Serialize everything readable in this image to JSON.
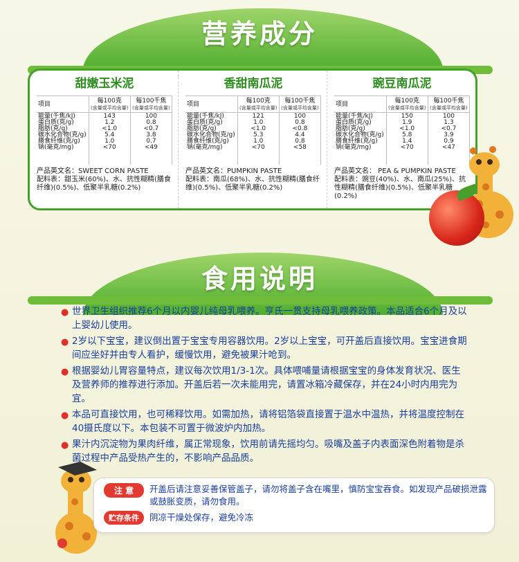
{
  "nutrition": {
    "title": "营养成分",
    "header_item": "项目",
    "header_per100g": "每100克",
    "header_per100g_sub": "(含量或平均含量)",
    "header_per100kj": "每100千焦",
    "header_per100kj_sub": "(含量或平均含量)",
    "row_labels": [
      "能量(千焦/kJ)",
      "蛋白质(克/g)",
      "脂肪(克/g)",
      "碳水化合物(克/g)",
      "膳食纤维(克/g)",
      "钠(毫克/mg)"
    ],
    "products": [
      {
        "name": "甜嫩玉米泥",
        "per100g": [
          "143",
          "1.2",
          "<1.0",
          "5.4",
          "1.0",
          "<70"
        ],
        "per100kj": [
          "100",
          "0.8",
          "<0.7",
          "3.8",
          "0.7",
          "<49"
        ],
        "english_name": "产品英文名：SWEET CORN  PASTE",
        "ingredients": "配料表：甜玉米(60%)、水、抗性糊精(膳食纤维)(0.5%)、低聚半乳糖(0.2%)"
      },
      {
        "name": "香甜南瓜泥",
        "per100g": [
          "121",
          "1.0",
          "<1.0",
          "5.3",
          "1.0",
          "<70"
        ],
        "per100kj": [
          "100",
          "0.8",
          "<0.8",
          "4.4",
          "0.8",
          "<58"
        ],
        "english_name": "产品英文名：PUMPKIN PASTE",
        "ingredients": "配料表：南瓜(68%)、水、抗性糊精(膳食纤维)(0.5%)、低聚半乳糖(0.2%)"
      },
      {
        "name": "豌豆南瓜泥",
        "per100g": [
          "150",
          "1.9",
          "<1.0",
          "5.8",
          "1.4",
          "<70"
        ],
        "per100kj": [
          "100",
          "1.3",
          "<0.7",
          "3.9",
          "0.9",
          "<47"
        ],
        "english_name": "产品英文名：  PEA & PUMPKIN PASTE",
        "ingredients": "配料表：豌豆(40%)、水、南瓜(25%)、抗性糊精(膳食纤维)(0.5%)、低聚半乳糖(0.2%)"
      }
    ]
  },
  "usage": {
    "title": "食用说明",
    "items": [
      "世界卫生组织推荐6个月以内婴儿纯母乳喂养。亨氏一贯支持母乳喂养政策。本品适合6个月及以上婴幼儿使用。",
      "2岁以下宝宝，建议倒出置于宝宝专用容器饮用。2岁以上宝宝，可开盖后直接饮用。宝宝进食期间应坐好并由专人看护，缓慢饮用，避免被果汁呛到。",
      "根据婴幼儿胃容量特点，建议每次饮用1/3-1次。具体喂哺量请根据宝宝的身体发育状况、医生及营养师的推荐进行添加。开盖后若一次未能用完，请置冰箱冷藏保存，并在24小时内用完为宜。",
      "本品可直接饮用，也可稀释饮用。如需加热，请将铝箔袋直接置于温水中温热，并将温度控制在40摄氏度以下。本包装不可置于微波炉内加热。",
      "果汁内沉淀物为果肉纤维，属正常现象，饮用前请先摇均匀。吸嘴及盖子内表面深色附着物是杀菌过程中产品受热产生的，不影响产品品质。"
    ]
  },
  "notice": {
    "label": "注  意",
    "text": "开盖后请注意妥善保管盖子，请勿将盖子含在嘴里，慎防宝宝吞食。如发现产品破损泄露或鼓胀变质，请勿食用。"
  },
  "storage": {
    "label": "贮存条件",
    "text": "阴凉干燥处保存，避免冷冻"
  },
  "colors": {
    "green": "#45a12a",
    "red": "#e23a31",
    "blue_text": "#1a3e9a"
  },
  "icons": [
    "giraffe-mascot-icon",
    "apple-icon",
    "bullet-dot-icon"
  ]
}
